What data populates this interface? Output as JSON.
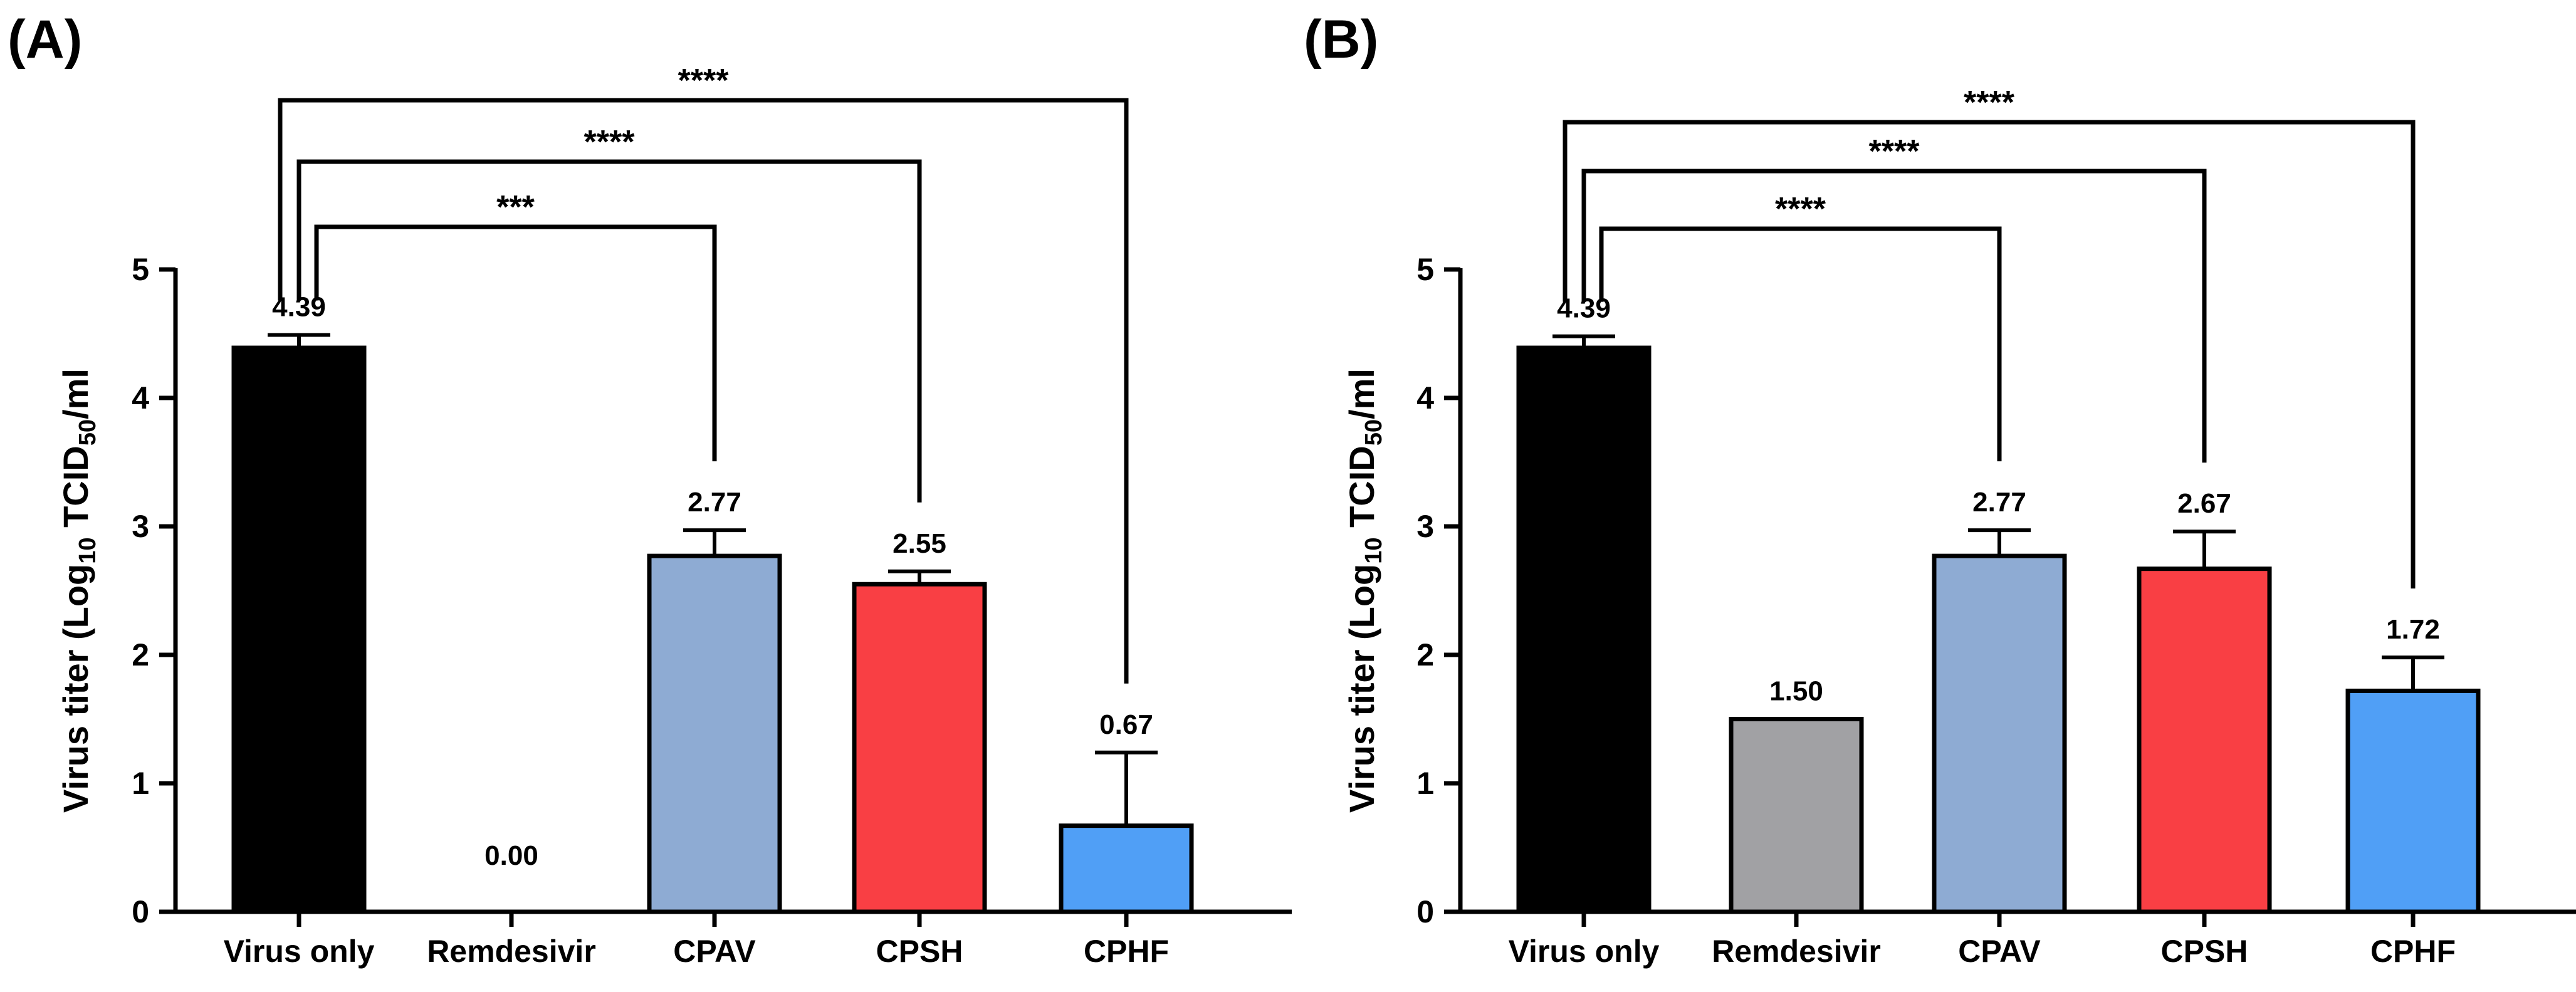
{
  "chart_data": [
    {
      "panel": "(A)",
      "type": "bar",
      "ylabel": "Virus titer (Log",
      "ylabel_sub": "10",
      "ylabel_mid": " TCID",
      "ylabel_sub2": "50",
      "ylabel_end": "/ml",
      "categories": [
        "Virus only",
        "Remdesivir",
        "CPAV",
        "CPSH",
        "CPHF"
      ],
      "values": [
        4.39,
        0.0,
        2.77,
        2.55,
        0.67
      ],
      "value_labels": [
        "4.39",
        "0.00",
        "2.77",
        "2.55",
        "0.67"
      ],
      "errors": [
        0.1,
        0,
        0.2,
        0.1,
        0.57
      ],
      "colors": [
        "#000000",
        "#a1a1a4",
        "#8eabd3",
        "#f93f44",
        "#509ff6"
      ],
      "ylim": [
        0,
        5
      ],
      "yticks": [
        "0",
        "1",
        "2",
        "3",
        "4",
        "5"
      ],
      "comparisons": [
        {
          "from": 0,
          "to": 2,
          "label": "***",
          "level": 0
        },
        {
          "from": 0,
          "to": 3,
          "label": "****",
          "level": 1
        },
        {
          "from": 0,
          "to": 4,
          "label": "****",
          "level": 2
        }
      ]
    },
    {
      "panel": "(B)",
      "type": "bar",
      "ylabel": "Virus titer (Log",
      "ylabel_sub": "10",
      "ylabel_mid": " TCID",
      "ylabel_sub2": "50",
      "ylabel_end": "/ml",
      "categories": [
        "Virus only",
        "Remdesivir",
        "CPAV",
        "CPSH",
        "CPHF"
      ],
      "values": [
        4.39,
        1.5,
        2.77,
        2.67,
        1.72
      ],
      "value_labels": [
        "4.39",
        "1.50",
        "2.77",
        "2.67",
        "1.72"
      ],
      "errors": [
        0.09,
        0,
        0.2,
        0.29,
        0.26
      ],
      "colors": [
        "#000000",
        "#a1a1a4",
        "#8eabd3",
        "#f93f44",
        "#509ff6"
      ],
      "ylim": [
        0,
        5
      ],
      "yticks": [
        "0",
        "1",
        "2",
        "3",
        "4",
        "5"
      ],
      "comparisons": [
        {
          "from": 0,
          "to": 2,
          "label": "****",
          "level": 0
        },
        {
          "from": 0,
          "to": 3,
          "label": "****",
          "level": 1
        },
        {
          "from": 0,
          "to": 4,
          "label": "****",
          "level": 2
        }
      ]
    }
  ]
}
